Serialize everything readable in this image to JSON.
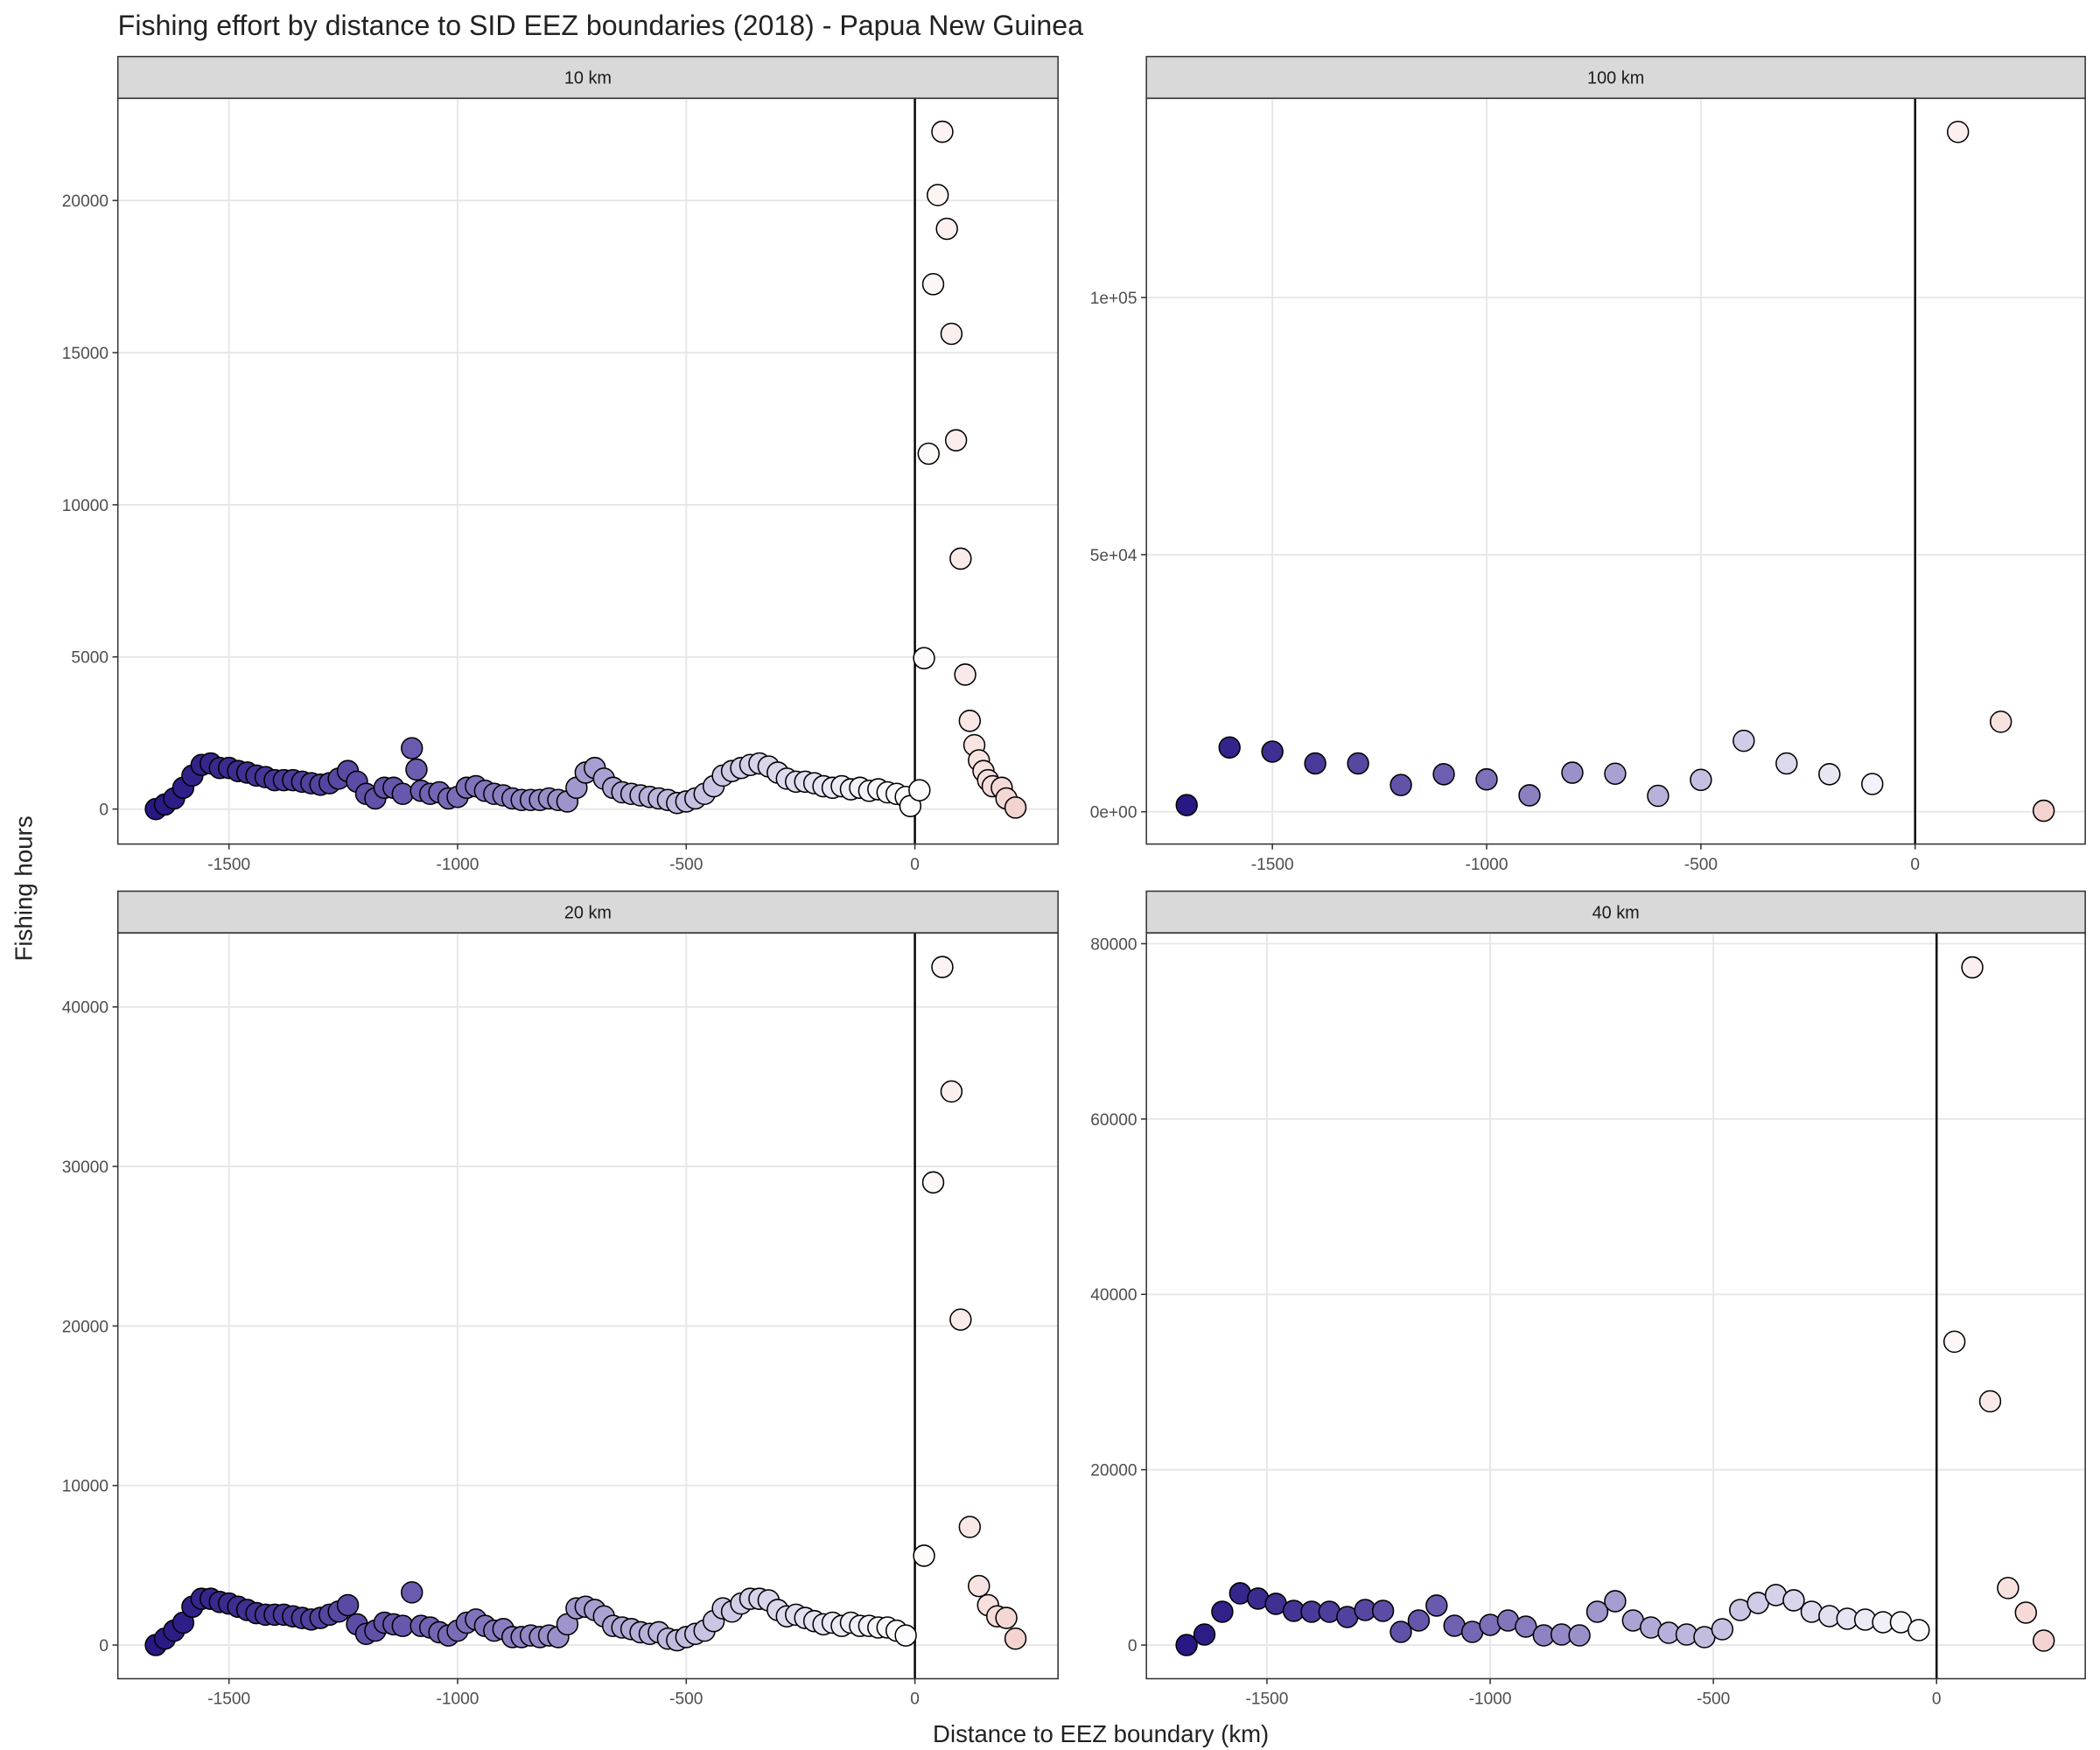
{
  "title": "Fishing effort by distance to SID EEZ boundaries (2018) - Papua New Guinea",
  "xlabel": "Distance to EEZ boundary (km)",
  "ylabel": "Fishing hours",
  "chart_data": [
    {
      "type": "scatter",
      "title": "10 km",
      "x": [
        -1660,
        -1640,
        -1620,
        -1600,
        -1580,
        -1560,
        -1540,
        -1520,
        -1500,
        -1480,
        -1460,
        -1440,
        -1420,
        -1400,
        -1380,
        -1360,
        -1340,
        -1320,
        -1300,
        -1280,
        -1260,
        -1240,
        -1220,
        -1200,
        -1180,
        -1160,
        -1140,
        -1120,
        -1100,
        -1090,
        -1080,
        -1060,
        -1040,
        -1020,
        -1000,
        -980,
        -960,
        -940,
        -920,
        -900,
        -880,
        -860,
        -840,
        -820,
        -800,
        -780,
        -760,
        -740,
        -720,
        -700,
        -680,
        -660,
        -640,
        -620,
        -600,
        -580,
        -560,
        -540,
        -520,
        -500,
        -480,
        -460,
        -440,
        -420,
        -400,
        -380,
        -360,
        -340,
        -320,
        -300,
        -280,
        -260,
        -240,
        -220,
        -200,
        -180,
        -160,
        -140,
        -120,
        -100,
        -80,
        -60,
        -40,
        -20,
        -10,
        10,
        20,
        30,
        40,
        50,
        60,
        70,
        80,
        90,
        100,
        110,
        120,
        130,
        140,
        150,
        160,
        170,
        190,
        200,
        220
      ],
      "values": [
        0,
        150,
        350,
        700,
        1100,
        1450,
        1500,
        1350,
        1350,
        1250,
        1200,
        1100,
        1050,
        950,
        950,
        950,
        900,
        850,
        800,
        850,
        1000,
        1250,
        900,
        500,
        350,
        700,
        700,
        500,
        2000,
        1300,
        600,
        500,
        550,
        350,
        400,
        700,
        750,
        600,
        500,
        450,
        350,
        300,
        300,
        300,
        350,
        300,
        250,
        700,
        1200,
        1350,
        1000,
        700,
        550,
        500,
        450,
        400,
        350,
        300,
        200,
        250,
        350,
        500,
        750,
        1100,
        1250,
        1350,
        1450,
        1500,
        1400,
        1200,
        1000,
        900,
        900,
        850,
        750,
        700,
        750,
        650,
        700,
        600,
        650,
        550,
        500,
        400,
        100,
        620,
        4960,
        11680,
        17250,
        20180,
        22260,
        19070,
        15620,
        12120,
        8230,
        4420,
        2900,
        2100,
        1600,
        1250,
        950,
        750,
        700,
        350,
        50
      ],
      "xlim": [
        -1743,
        313
      ],
      "ylim": [
        -1150,
        23360
      ],
      "xticks": [
        -1500,
        -1000,
        -500,
        0
      ],
      "yticks": [
        0,
        5000,
        10000,
        15000,
        20000
      ],
      "vline": 0,
      "grid": true,
      "color_scale": {
        "negative": [
          "#271883",
          "#6a5aae",
          "#bdb7dd",
          "#ffffff"
        ],
        "positive": [
          "#ffffff",
          "#f3d3d0"
        ]
      }
    },
    {
      "type": "scatter",
      "title": "100 km",
      "x": [
        -1700,
        -1600,
        -1500,
        -1400,
        -1300,
        -1200,
        -1100,
        -1000,
        -900,
        -800,
        -700,
        -600,
        -500,
        -400,
        -300,
        -200,
        -100,
        100,
        200,
        300
      ],
      "values": [
        1300,
        12500,
        11700,
        9400,
        9400,
        5200,
        7300,
        6300,
        3200,
        7600,
        7400,
        3100,
        6200,
        13800,
        9400,
        7300,
        5400,
        132200,
        17500,
        200
      ],
      "xlim": [
        -1794,
        397
      ],
      "ylim": [
        -6280,
        138740
      ],
      "xticks": [
        -1500,
        -1000,
        -500,
        0
      ],
      "yticks": [
        {
          "value": 0,
          "label": "0e+00"
        },
        {
          "value": 50000,
          "label": "5e+04"
        },
        {
          "value": 100000,
          "label": "1e+05"
        }
      ],
      "vline": 0,
      "grid": true,
      "color_scale": {
        "negative": [
          "#271883",
          "#6a5aae",
          "#bdb7dd",
          "#ffffff"
        ],
        "positive": [
          "#ffffff",
          "#f3d3d0"
        ]
      }
    },
    {
      "type": "scatter",
      "title": "20 km",
      "x": [
        -1660,
        -1640,
        -1620,
        -1600,
        -1580,
        -1560,
        -1540,
        -1520,
        -1500,
        -1480,
        -1460,
        -1440,
        -1420,
        -1400,
        -1380,
        -1360,
        -1340,
        -1320,
        -1300,
        -1280,
        -1260,
        -1240,
        -1220,
        -1200,
        -1180,
        -1160,
        -1140,
        -1120,
        -1100,
        -1080,
        -1060,
        -1040,
        -1020,
        -1000,
        -980,
        -960,
        -940,
        -920,
        -900,
        -880,
        -860,
        -840,
        -820,
        -800,
        -780,
        -760,
        -740,
        -720,
        -700,
        -680,
        -660,
        -640,
        -620,
        -600,
        -580,
        -560,
        -540,
        -520,
        -500,
        -480,
        -460,
        -440,
        -420,
        -400,
        -380,
        -360,
        -340,
        -320,
        -300,
        -280,
        -260,
        -240,
        -220,
        -200,
        -180,
        -160,
        -140,
        -120,
        -100,
        -80,
        -60,
        -40,
        -20,
        20,
        40,
        60,
        80,
        100,
        120,
        140,
        160,
        180,
        200,
        220
      ],
      "values": [
        0,
        400,
        900,
        1400,
        2400,
        2900,
        2900,
        2700,
        2600,
        2400,
        2200,
        2000,
        1900,
        1900,
        1900,
        1800,
        1700,
        1600,
        1700,
        1900,
        2100,
        2500,
        1300,
        700,
        900,
        1400,
        1300,
        1200,
        3300,
        1200,
        1100,
        800,
        600,
        900,
        1400,
        1600,
        1200,
        900,
        1000,
        500,
        500,
        600,
        500,
        600,
        500,
        1300,
        2300,
        2400,
        2200,
        1800,
        1200,
        1100,
        1000,
        800,
        700,
        800,
        400,
        300,
        500,
        700,
        900,
        1500,
        2300,
        2100,
        2600,
        2900,
        2900,
        2800,
        2200,
        1800,
        1900,
        1700,
        1500,
        1300,
        1400,
        1200,
        1400,
        1200,
        1200,
        1100,
        1100,
        900,
        600,
        5600,
        29000,
        42500,
        34700,
        20400,
        7400,
        3700,
        2500,
        1800,
        1700,
        400
      ],
      "xlim": [
        -1743,
        313
      ],
      "ylim": [
        -2110,
        44640
      ],
      "xticks": [
        -1500,
        -1000,
        -500,
        0
      ],
      "yticks": [
        0,
        10000,
        20000,
        30000,
        40000
      ],
      "vline": 0,
      "grid": true,
      "color_scale": {
        "negative": [
          "#271883",
          "#6a5aae",
          "#bdb7dd",
          "#ffffff"
        ],
        "positive": [
          "#ffffff",
          "#f3d3d0"
        ]
      }
    },
    {
      "type": "scatter",
      "title": "40 km",
      "x": [
        -1680,
        -1640,
        -1600,
        -1560,
        -1520,
        -1480,
        -1440,
        -1400,
        -1360,
        -1320,
        -1280,
        -1240,
        -1200,
        -1160,
        -1120,
        -1080,
        -1040,
        -1000,
        -960,
        -920,
        -880,
        -840,
        -800,
        -760,
        -720,
        -680,
        -640,
        -600,
        -560,
        -520,
        -480,
        -440,
        -400,
        -360,
        -320,
        -280,
        -240,
        -200,
        -160,
        -120,
        -80,
        -40,
        40,
        80,
        120,
        160,
        200,
        240
      ],
      "values": [
        0,
        1200,
        3800,
        5900,
        5300,
        4700,
        3900,
        3800,
        3800,
        3200,
        4000,
        3900,
        1500,
        2800,
        4500,
        2200,
        1500,
        2300,
        2800,
        2100,
        1100,
        1200,
        1100,
        3800,
        5000,
        2800,
        2000,
        1400,
        1200,
        900,
        1800,
        4000,
        4800,
        5700,
        5100,
        3800,
        3300,
        3000,
        2900,
        2600,
        2600,
        1700,
        34600,
        77300,
        27800,
        6500,
        3700,
        500
      ],
      "xlim": [
        -1770,
        333
      ],
      "ylim": [
        -3840,
        81230
      ],
      "xticks": [
        -1500,
        -1000,
        -500,
        0
      ],
      "yticks": [
        0,
        20000,
        40000,
        60000,
        80000
      ],
      "vline": 0,
      "grid": true,
      "color_scale": {
        "negative": [
          "#271883",
          "#6a5aae",
          "#bdb7dd",
          "#ffffff"
        ],
        "positive": [
          "#ffffff",
          "#f3d3d0"
        ]
      }
    }
  ]
}
